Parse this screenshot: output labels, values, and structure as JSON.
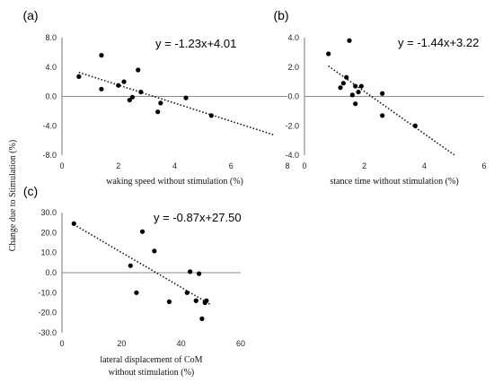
{
  "shared_ylabel": "Change due to Stimulation (%)",
  "chart_data": [
    {
      "type": "scatter",
      "panel_label": "(a)",
      "equation": "y = -1.23x+4.01",
      "xlabel": "waking speed without stimulation (%)",
      "xlabel2": "",
      "xlim": [
        0,
        8
      ],
      "ylim": [
        -8,
        8
      ],
      "xticks": [
        0,
        2,
        4,
        6,
        8
      ],
      "yticks": [
        8,
        4,
        0,
        -4,
        -8
      ],
      "ytick_labels": [
        "8.0",
        "4.0",
        "0.0",
        "-4.0",
        "-8.0"
      ],
      "trendline": {
        "slope": -1.23,
        "intercept": 4.01,
        "x_range": [
          0.6,
          7.5
        ]
      },
      "points": [
        {
          "x": 0.6,
          "y": 2.7
        },
        {
          "x": 1.4,
          "y": 5.6
        },
        {
          "x": 1.4,
          "y": 1.0
        },
        {
          "x": 2.0,
          "y": 1.5
        },
        {
          "x": 2.2,
          "y": 2.0
        },
        {
          "x": 2.4,
          "y": -0.5
        },
        {
          "x": 2.5,
          "y": -0.1
        },
        {
          "x": 2.7,
          "y": 3.6
        },
        {
          "x": 2.8,
          "y": 0.6
        },
        {
          "x": 3.4,
          "y": -2.1
        },
        {
          "x": 3.5,
          "y": -0.9
        },
        {
          "x": 4.4,
          "y": -0.2
        },
        {
          "x": 5.3,
          "y": -2.6
        }
      ]
    },
    {
      "type": "scatter",
      "panel_label": "(b)",
      "equation": "y = -1.44x+3.22",
      "xlabel": "stance time without stimulation (%)",
      "xlabel2": "",
      "xlim": [
        0,
        6
      ],
      "ylim": [
        -4,
        4
      ],
      "xticks": [
        0,
        2,
        4,
        6
      ],
      "yticks": [
        4,
        2,
        0,
        -2,
        -4
      ],
      "ytick_labels": [
        "4.0",
        "2.0",
        "0.0",
        "-2.0",
        "-4.0"
      ],
      "trendline": {
        "slope": -1.44,
        "intercept": 3.22,
        "x_range": [
          0.8,
          5.0
        ]
      },
      "points": [
        {
          "x": 0.8,
          "y": 2.9
        },
        {
          "x": 1.2,
          "y": 0.6
        },
        {
          "x": 1.3,
          "y": 0.9
        },
        {
          "x": 1.4,
          "y": 1.3
        },
        {
          "x": 1.5,
          "y": 3.8
        },
        {
          "x": 1.6,
          "y": 0.1
        },
        {
          "x": 1.7,
          "y": -0.5
        },
        {
          "x": 1.7,
          "y": 0.7
        },
        {
          "x": 1.8,
          "y": 0.3
        },
        {
          "x": 1.9,
          "y": 0.7
        },
        {
          "x": 2.6,
          "y": 0.2
        },
        {
          "x": 2.6,
          "y": -1.3
        },
        {
          "x": 3.7,
          "y": -2.0
        }
      ]
    },
    {
      "type": "scatter",
      "panel_label": "(c)",
      "equation": "y = -0.87x+27.50",
      "xlabel": "lateral displacement of CoM",
      "xlabel2": "without stimulation (%)",
      "xlim": [
        0,
        60
      ],
      "ylim": [
        -30,
        30
      ],
      "xticks": [
        0,
        20,
        40,
        60
      ],
      "yticks": [
        30,
        20,
        10,
        0,
        -10,
        -20,
        -30
      ],
      "ytick_labels": [
        "30.0",
        "20.0",
        "10.0",
        "0.0",
        "-10.0",
        "-20.0",
        "-30.0"
      ],
      "trendline": {
        "slope": -0.87,
        "intercept": 27.5,
        "x_range": [
          4,
          50
        ]
      },
      "points": [
        {
          "x": 4,
          "y": 24.5
        },
        {
          "x": 23,
          "y": 3.5
        },
        {
          "x": 25,
          "y": -10.0
        },
        {
          "x": 27,
          "y": 20.5
        },
        {
          "x": 31,
          "y": 10.8
        },
        {
          "x": 36,
          "y": -14.5
        },
        {
          "x": 42,
          "y": -10.0
        },
        {
          "x": 43,
          "y": 0.5
        },
        {
          "x": 45,
          "y": -14.0
        },
        {
          "x": 46,
          "y": -0.5
        },
        {
          "x": 47,
          "y": -23.0
        },
        {
          "x": 48,
          "y": -15.0
        },
        {
          "x": 48.5,
          "y": -14.0
        }
      ]
    }
  ]
}
